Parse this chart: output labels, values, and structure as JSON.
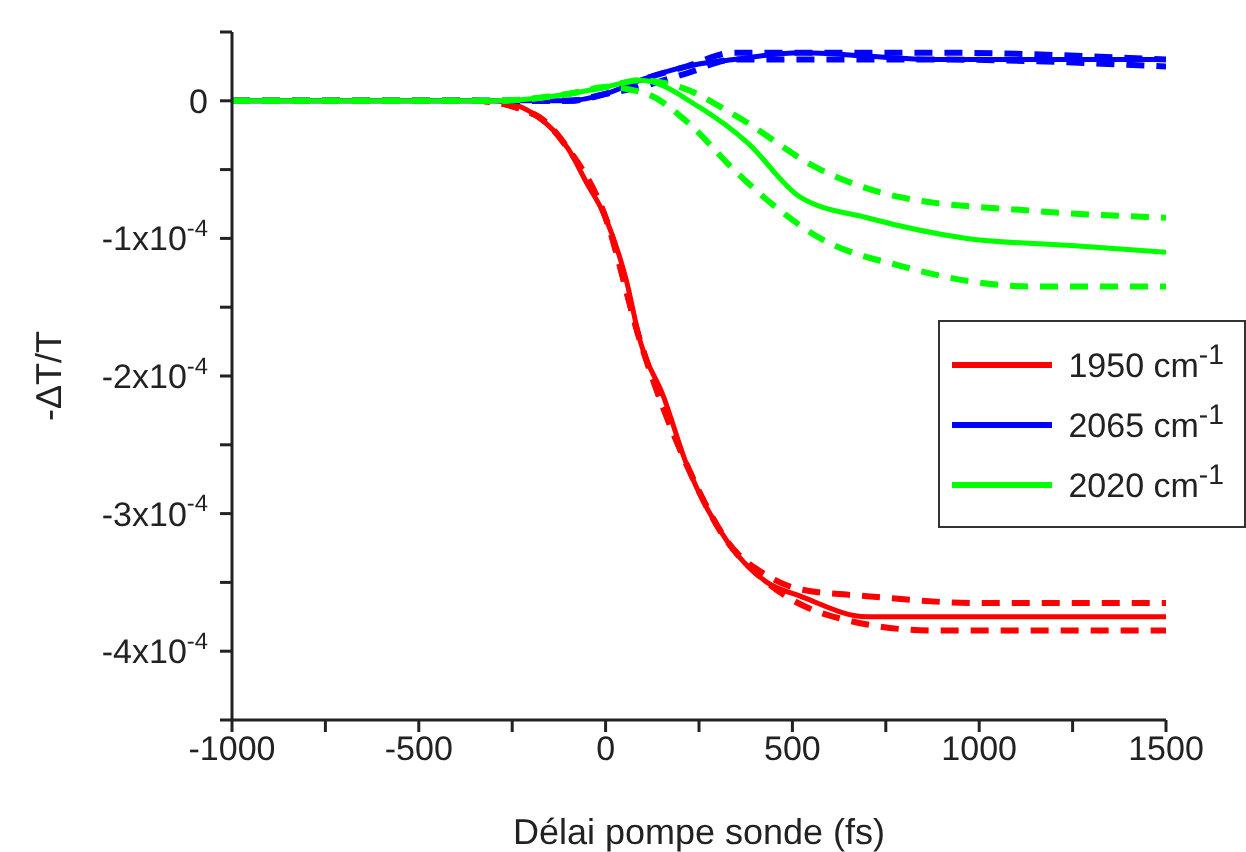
{
  "chart_data": {
    "type": "line",
    "xlabel": "Délai pompe sonde (fs)",
    "ylabel": "-ΔT/T",
    "xlim": [
      -1000,
      1500
    ],
    "ylim": [
      -0.00045,
      5e-05
    ],
    "xticks": [
      -1000,
      {
        "value": -750,
        "label": null
      },
      -500,
      {
        "value": -250,
        "label": null
      },
      0,
      {
        "value": 250,
        "label": null
      },
      500,
      {
        "value": 750,
        "label": null
      },
      1000,
      {
        "value": 1250,
        "label": null
      },
      1500
    ],
    "yticks": [
      {
        "value": -0.00045,
        "label": null
      },
      {
        "value": -0.0004,
        "label": "-4x10$^{-4}$"
      },
      {
        "value": -0.00035,
        "label": null
      },
      {
        "value": -0.0003,
        "label": "-3x10$^{-4}$"
      },
      {
        "value": -0.00025,
        "label": null
      },
      {
        "value": -0.0002,
        "label": "-2x10$^{-4}$"
      },
      {
        "value": -0.00015,
        "label": null
      },
      {
        "value": -0.0001,
        "label": "-1x10$^{-4}$"
      },
      {
        "value": -5e-05,
        "label": null
      },
      {
        "value": 0,
        "label": "0"
      },
      {
        "value": 5e-05,
        "label": null
      }
    ],
    "legend": "right",
    "series": [
      {
        "name": "1950 cm$^{-1}$",
        "color": "#ff0000",
        "x": [
          -1000,
          -500,
          -350,
          -300,
          -190,
          -100,
          -50,
          0,
          55,
          93,
          155,
          218,
          325,
          432,
          521,
          700,
          967,
          1500
        ],
        "values": [
          0,
          0,
          0,
          0,
          -1e-05,
          -3.5e-05,
          -6e-05,
          -8.5e-05,
          -0.00013,
          -0.000175,
          -0.000215,
          -0.000265,
          -0.00032,
          -0.00035,
          -0.00036,
          -0.000375,
          -0.000375,
          -0.000375
        ]
      },
      {
        "color": "#ff0000",
        "line_style": "dashed",
        "x": [
          -1000,
          -350,
          -190,
          -100,
          0,
          93,
          218,
          325,
          432,
          521,
          700,
          1000,
          1500
        ],
        "values": [
          0,
          0,
          -1e-05,
          -3.5e-05,
          -8.5e-05,
          -0.000175,
          -0.000265,
          -0.00032,
          -0.000345,
          -0.000355,
          -0.00036,
          -0.000365,
          -0.000365
        ]
      },
      {
        "color": "#ff0000",
        "line_style": "dashed",
        "x": [
          -1000,
          -350,
          -190,
          -100,
          0,
          93,
          218,
          325,
          432,
          611,
          878,
          1500
        ],
        "values": [
          0,
          0,
          -1e-05,
          -3.5e-05,
          -8.5e-05,
          -0.000175,
          -0.000265,
          -0.00032,
          -0.00035,
          -0.000375,
          -0.000385,
          -0.000385
        ]
      },
      {
        "name": "2065 cm$^{-1}$",
        "color": "#0000ff",
        "x": [
          -1000,
          -300,
          -100,
          0,
          93,
          217,
          343,
          521,
          878,
          1500
        ],
        "values": [
          0,
          0,
          0,
          5e-06,
          1.5e-05,
          2.5e-05,
          3e-05,
          3.5e-05,
          3e-05,
          3e-05
        ]
      },
      {
        "color": "#0000ff",
        "line_style": "dashed",
        "x": [
          -1000,
          -300,
          -100,
          0,
          93,
          217,
          343,
          521,
          878,
          1500
        ],
        "values": [
          0,
          0,
          0,
          5e-06,
          1.5e-05,
          2.5e-05,
          3.5e-05,
          3.5e-05,
          3.5e-05,
          3e-05
        ]
      },
      {
        "color": "#0000ff",
        "line_style": "dashed",
        "x": [
          -1000,
          -300,
          -100,
          0,
          93,
          217,
          343,
          521,
          878,
          1500
        ],
        "values": [
          0,
          0,
          0,
          5e-06,
          1e-05,
          2e-05,
          3e-05,
          3e-05,
          3e-05,
          2.5e-05
        ]
      },
      {
        "name": "2020 cm$^{-1}$",
        "color": "#00ff00",
        "x": [
          -1000,
          -300,
          -100,
          0,
          93,
          253,
          378,
          521,
          700,
          967,
          1235,
          1500
        ],
        "values": [
          0,
          0,
          5e-06,
          1e-05,
          1.5e-05,
          -5e-06,
          -3e-05,
          -7e-05,
          -8.5e-05,
          -0.0001,
          -0.000105,
          -0.00011
        ]
      },
      {
        "color": "#00ff00",
        "line_style": "dashed",
        "x": [
          -1000,
          -300,
          -100,
          0,
          93,
          200,
          343,
          575,
          789,
          1146,
          1500
        ],
        "values": [
          0,
          0,
          5e-06,
          1e-05,
          1.5e-05,
          1e-05,
          -1e-05,
          -5e-05,
          -7e-05,
          -8e-05,
          -8.5e-05
        ]
      },
      {
        "color": "#00ff00",
        "line_style": "dashed",
        "x": [
          -1000,
          -300,
          -100,
          0,
          110,
          217,
          343,
          468,
          575,
          789,
          1146,
          1500
        ],
        "values": [
          0,
          0,
          5e-06,
          1e-05,
          5e-06,
          -1.5e-05,
          -5e-05,
          -8e-05,
          -0.0001,
          -0.00012,
          -0.000135,
          -0.000135
        ]
      }
    ]
  }
}
